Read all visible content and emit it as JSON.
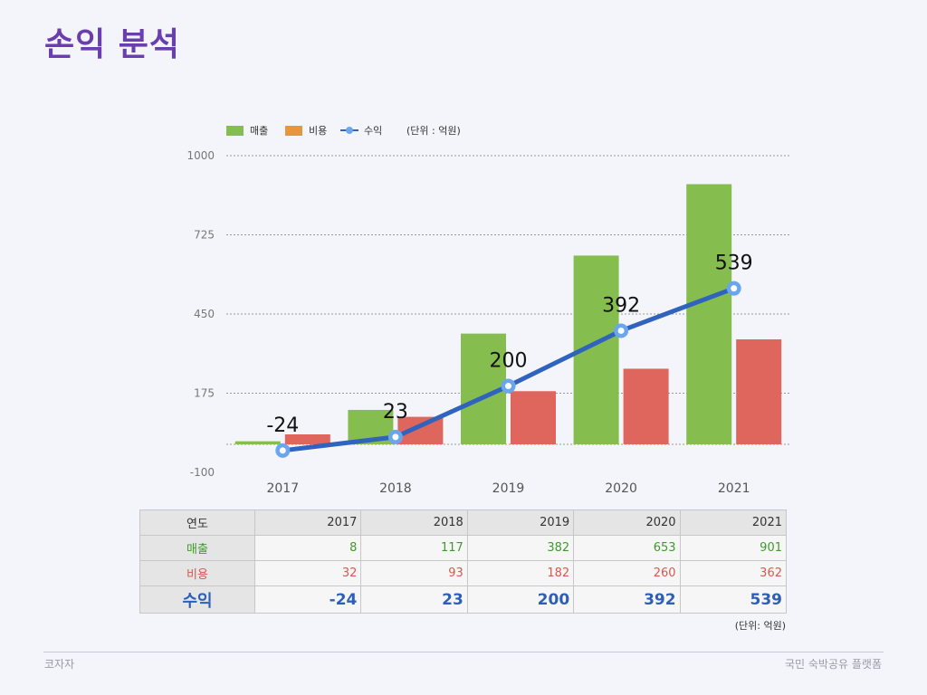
{
  "page": {
    "title": "손익 분석"
  },
  "legend": {
    "items": [
      {
        "label": "매출",
        "color": "#86bd4f",
        "shape": "rect"
      },
      {
        "label": "비용",
        "color": "#e8963b",
        "shape": "rect"
      },
      {
        "label": "수익",
        "color": "#2f63be",
        "shape": "line-marker"
      }
    ],
    "unit": "(단위 : 억원)"
  },
  "chart_data": {
    "type": "bar",
    "categories": [
      "2017",
      "2018",
      "2019",
      "2020",
      "2021"
    ],
    "series": [
      {
        "name": "매출",
        "type": "bar",
        "values": [
          8,
          117,
          382,
          653,
          901
        ],
        "color": "#86bd4f"
      },
      {
        "name": "비용",
        "type": "bar",
        "values": [
          32,
          93,
          182,
          260,
          362
        ],
        "color": "#de665c"
      },
      {
        "name": "수익",
        "type": "line",
        "values": [
          -24,
          23,
          200,
          392,
          539
        ],
        "color": "#2f63be",
        "marker_color": "#6aa6ee"
      }
    ],
    "yticks": [
      1000,
      725,
      450,
      175,
      -100
    ],
    "ylim": [
      -100,
      1000
    ],
    "grid": true,
    "legend_position": "top-left",
    "title": "",
    "xlabel": "",
    "ylabel": ""
  },
  "table": {
    "header": [
      "연도",
      "2017",
      "2018",
      "2019",
      "2020",
      "2021"
    ],
    "rows": [
      {
        "label": "매출",
        "values": [
          "8",
          "117",
          "382",
          "653",
          "901"
        ]
      },
      {
        "label": "비용",
        "values": [
          "32",
          "93",
          "182",
          "260",
          "362"
        ]
      },
      {
        "label": "수익",
        "values": [
          "-24",
          "23",
          "200",
          "392",
          "539"
        ]
      }
    ],
    "unit": "(단위: 억원)"
  },
  "footer": {
    "left": "코자자",
    "right": "국민 숙박공유 플랫폼"
  }
}
